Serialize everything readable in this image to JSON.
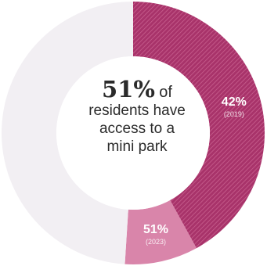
{
  "chart_data": {
    "type": "donut",
    "center": {
      "headline": "51%",
      "headline_tail": "of",
      "lines": [
        "residents have",
        "access to a",
        "mini park"
      ]
    },
    "slices": [
      {
        "value": 42,
        "label": "42%",
        "sublabel": "(2019)",
        "color": "#b03a6f",
        "pattern": "hatched"
      },
      {
        "value": 9,
        "label": "51%",
        "sublabel": "(2023)",
        "color": "#d985aa",
        "pattern": "solid"
      },
      {
        "value": 49,
        "label": "",
        "sublabel": "",
        "color": "#f2eff3",
        "pattern": "solid"
      }
    ]
  }
}
